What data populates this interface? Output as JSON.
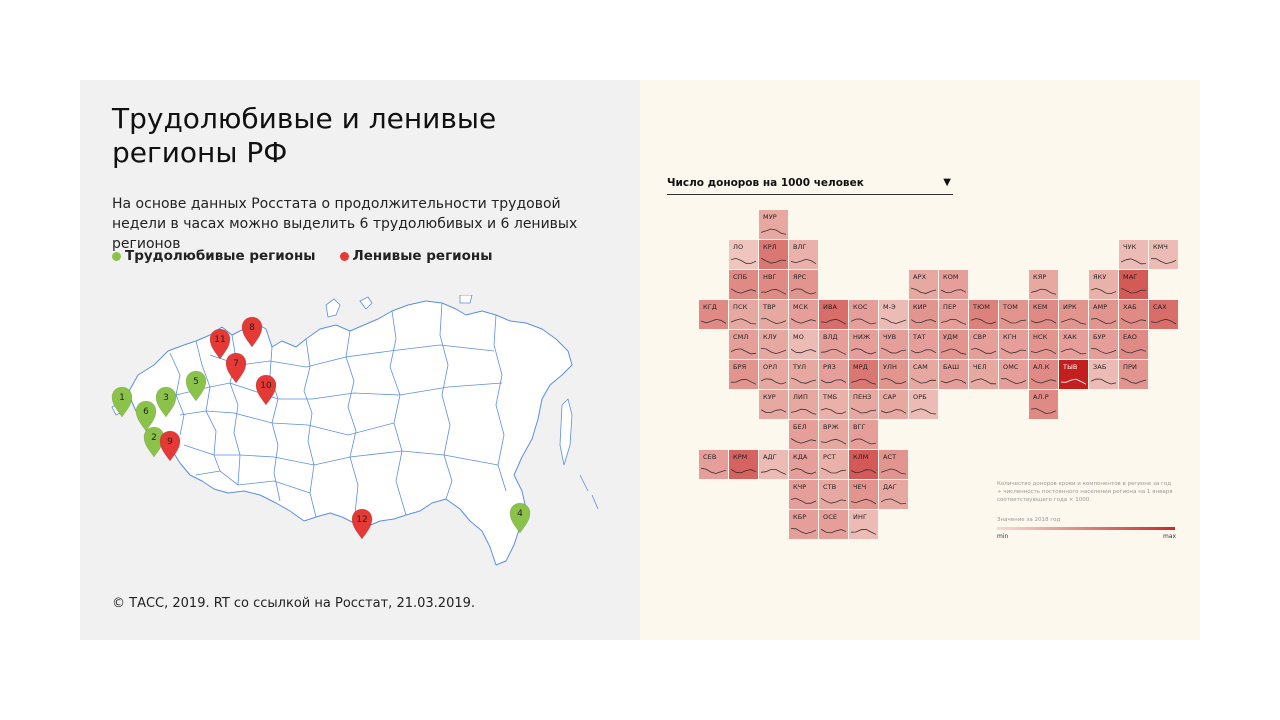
{
  "title": "Трудолюбивые и ленивые регионы РФ",
  "subtitle": "На основе данных Росстата о продолжительности трудовой недели в часах можно выделить 6 трудолюбивых и 6 ленивых регионов",
  "legend": {
    "hardworking": {
      "label": "Трудолюбивые регионы",
      "color": "#8bc34a"
    },
    "lazy": {
      "label": "Ленивые регионы",
      "color": "#e53935"
    }
  },
  "markers": [
    {
      "n": "1",
      "kind": "hardworking"
    },
    {
      "n": "2",
      "kind": "hardworking"
    },
    {
      "n": "3",
      "kind": "hardworking"
    },
    {
      "n": "4",
      "kind": "hardworking"
    },
    {
      "n": "5",
      "kind": "hardworking"
    },
    {
      "n": "6",
      "kind": "hardworking"
    },
    {
      "n": "7",
      "kind": "lazy"
    },
    {
      "n": "8",
      "kind": "lazy"
    },
    {
      "n": "9",
      "kind": "lazy"
    },
    {
      "n": "10",
      "kind": "lazy"
    },
    {
      "n": "11",
      "kind": "lazy"
    },
    {
      "n": "12",
      "kind": "lazy"
    }
  ],
  "footer": "© ТАСС, 2019. RT со ссылкой на Росстат, 21.03.2019.",
  "tilemap": {
    "select_label": "Число доноров на 1000 человек",
    "select_arrow": "▼",
    "note": "Количество доноров крови и компонентов в регионе за год ÷ численность постоянного населения региона на 1 января соответствующего года × 1000.",
    "scale_title": "Значение за 2018 год",
    "scale_min": "min",
    "scale_max": "max",
    "color_low": "#f6e2da",
    "color_high": "#c41f1f",
    "regions": [
      {
        "code": "МУР",
        "row": 0,
        "col": 2,
        "v": 0.3
      },
      {
        "code": "ЛО",
        "row": 1,
        "col": 1,
        "v": 0.15
      },
      {
        "code": "КРЛ",
        "row": 1,
        "col": 2,
        "v": 0.55
      },
      {
        "code": "ВЛГ",
        "row": 1,
        "col": 3,
        "v": 0.25
      },
      {
        "code": "ЧУК",
        "row": 1,
        "col": 14,
        "v": 0.2
      },
      {
        "code": "КМЧ",
        "row": 1,
        "col": 15,
        "v": 0.2
      },
      {
        "code": "СПБ",
        "row": 2,
        "col": 1,
        "v": 0.45
      },
      {
        "code": "НВГ",
        "row": 2,
        "col": 2,
        "v": 0.45
      },
      {
        "code": "ЯРС",
        "row": 2,
        "col": 3,
        "v": 0.4
      },
      {
        "code": "АРХ",
        "row": 2,
        "col": 7,
        "v": 0.3
      },
      {
        "code": "КОМ",
        "row": 2,
        "col": 8,
        "v": 0.35
      },
      {
        "code": "КЯР",
        "row": 2,
        "col": 11,
        "v": 0.3
      },
      {
        "code": "ЯКУ",
        "row": 2,
        "col": 13,
        "v": 0.25
      },
      {
        "code": "МАГ",
        "row": 2,
        "col": 14,
        "v": 0.7
      },
      {
        "code": "КГД",
        "row": 3,
        "col": 0,
        "v": 0.45
      },
      {
        "code": "ПСК",
        "row": 3,
        "col": 1,
        "v": 0.3
      },
      {
        "code": "ТВР",
        "row": 3,
        "col": 2,
        "v": 0.3
      },
      {
        "code": "МСК",
        "row": 3,
        "col": 3,
        "v": 0.35
      },
      {
        "code": "ИВА",
        "row": 3,
        "col": 4,
        "v": 0.6
      },
      {
        "code": "КОС",
        "row": 3,
        "col": 5,
        "v": 0.35
      },
      {
        "code": "М-Э",
        "row": 3,
        "col": 6,
        "v": 0.2
      },
      {
        "code": "КИР",
        "row": 3,
        "col": 7,
        "v": 0.4
      },
      {
        "code": "ПЕР",
        "row": 3,
        "col": 8,
        "v": 0.35
      },
      {
        "code": "ТЮМ",
        "row": 3,
        "col": 9,
        "v": 0.5
      },
      {
        "code": "ТОМ",
        "row": 3,
        "col": 10,
        "v": 0.4
      },
      {
        "code": "КЕМ",
        "row": 3,
        "col": 11,
        "v": 0.45
      },
      {
        "code": "ИРК",
        "row": 3,
        "col": 12,
        "v": 0.4
      },
      {
        "code": "АМР",
        "row": 3,
        "col": 13,
        "v": 0.4
      },
      {
        "code": "ХАБ",
        "row": 3,
        "col": 14,
        "v": 0.45
      },
      {
        "code": "САХ",
        "row": 3,
        "col": 15,
        "v": 0.6
      },
      {
        "code": "СМЛ",
        "row": 4,
        "col": 1,
        "v": 0.35
      },
      {
        "code": "КЛУ",
        "row": 4,
        "col": 2,
        "v": 0.3
      },
      {
        "code": "МО",
        "row": 4,
        "col": 3,
        "v": 0.2
      },
      {
        "code": "ВЛД",
        "row": 4,
        "col": 4,
        "v": 0.35
      },
      {
        "code": "НИЖ",
        "row": 4,
        "col": 5,
        "v": 0.35
      },
      {
        "code": "ЧУВ",
        "row": 4,
        "col": 6,
        "v": 0.35
      },
      {
        "code": "ТАТ",
        "row": 4,
        "col": 7,
        "v": 0.35
      },
      {
        "code": "УДМ",
        "row": 4,
        "col": 8,
        "v": 0.4
      },
      {
        "code": "СВР",
        "row": 4,
        "col": 9,
        "v": 0.35
      },
      {
        "code": "КГН",
        "row": 4,
        "col": 10,
        "v": 0.35
      },
      {
        "code": "НСК",
        "row": 4,
        "col": 11,
        "v": 0.4
      },
      {
        "code": "ХАК",
        "row": 4,
        "col": 12,
        "v": 0.35
      },
      {
        "code": "БУР",
        "row": 4,
        "col": 13,
        "v": 0.35
      },
      {
        "code": "ЕАО",
        "row": 4,
        "col": 14,
        "v": 0.45
      },
      {
        "code": "БРЯ",
        "row": 5,
        "col": 1,
        "v": 0.4
      },
      {
        "code": "ОРЛ",
        "row": 5,
        "col": 2,
        "v": 0.3
      },
      {
        "code": "ТУЛ",
        "row": 5,
        "col": 3,
        "v": 0.3
      },
      {
        "code": "РЯЗ",
        "row": 5,
        "col": 4,
        "v": 0.35
      },
      {
        "code": "МРД",
        "row": 5,
        "col": 5,
        "v": 0.55
      },
      {
        "code": "УЛН",
        "row": 5,
        "col": 6,
        "v": 0.4
      },
      {
        "code": "САМ",
        "row": 5,
        "col": 7,
        "v": 0.3
      },
      {
        "code": "БАШ",
        "row": 5,
        "col": 8,
        "v": 0.35
      },
      {
        "code": "ЧЕЛ",
        "row": 5,
        "col": 9,
        "v": 0.3
      },
      {
        "code": "ОМС",
        "row": 5,
        "col": 10,
        "v": 0.35
      },
      {
        "code": "АЛ.К",
        "row": 5,
        "col": 11,
        "v": 0.45
      },
      {
        "code": "ТЫВ",
        "row": 5,
        "col": 12,
        "v": 1.0
      },
      {
        "code": "ЗАБ",
        "row": 5,
        "col": 13,
        "v": 0.2
      },
      {
        "code": "ПРИ",
        "row": 5,
        "col": 14,
        "v": 0.4
      },
      {
        "code": "КУР",
        "row": 6,
        "col": 2,
        "v": 0.3
      },
      {
        "code": "ЛИП",
        "row": 6,
        "col": 3,
        "v": 0.3
      },
      {
        "code": "ТМБ",
        "row": 6,
        "col": 4,
        "v": 0.25
      },
      {
        "code": "ПЕНЗ",
        "row": 6,
        "col": 5,
        "v": 0.3
      },
      {
        "code": "САР",
        "row": 6,
        "col": 6,
        "v": 0.3
      },
      {
        "code": "ОРБ",
        "row": 6,
        "col": 7,
        "v": 0.2
      },
      {
        "code": "АЛ.Р",
        "row": 6,
        "col": 11,
        "v": 0.45
      },
      {
        "code": "БЕЛ",
        "row": 7,
        "col": 3,
        "v": 0.35
      },
      {
        "code": "ВРЖ",
        "row": 7,
        "col": 4,
        "v": 0.3
      },
      {
        "code": "ВГГ",
        "row": 7,
        "col": 5,
        "v": 0.35
      },
      {
        "code": "СЕВ",
        "row": 8,
        "col": 0,
        "v": 0.35
      },
      {
        "code": "КРМ",
        "row": 8,
        "col": 1,
        "v": 0.65
      },
      {
        "code": "АДГ",
        "row": 8,
        "col": 2,
        "v": 0.2
      },
      {
        "code": "КДА",
        "row": 8,
        "col": 3,
        "v": 0.35
      },
      {
        "code": "РСТ",
        "row": 8,
        "col": 4,
        "v": 0.25
      },
      {
        "code": "КЛМ",
        "row": 8,
        "col": 5,
        "v": 0.7
      },
      {
        "code": "АСТ",
        "row": 8,
        "col": 6,
        "v": 0.4
      },
      {
        "code": "КЧР",
        "row": 9,
        "col": 3,
        "v": 0.35
      },
      {
        "code": "СТВ",
        "row": 9,
        "col": 4,
        "v": 0.3
      },
      {
        "code": "ЧЕЧ",
        "row": 9,
        "col": 5,
        "v": 0.4
      },
      {
        "code": "ДАГ",
        "row": 9,
        "col": 6,
        "v": 0.3
      },
      {
        "code": "КБР",
        "row": 10,
        "col": 3,
        "v": 0.35
      },
      {
        "code": "ОСЕ",
        "row": 10,
        "col": 4,
        "v": 0.35
      },
      {
        "code": "ИНГ",
        "row": 10,
        "col": 5,
        "v": 0.2
      }
    ]
  }
}
